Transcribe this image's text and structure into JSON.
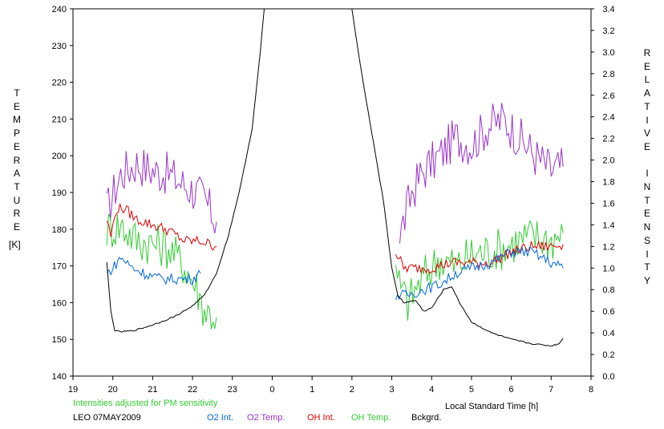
{
  "chart_data": {
    "type": "line",
    "title": "",
    "xlabel": "Local Standard Time [h]",
    "ylabel_left": "TEMPERATURE",
    "ylabel_left_unit": "[K]",
    "ylabel_right": "RELATIVE INTENSITY",
    "ylim_left": [
      140,
      240
    ],
    "ylim_right": [
      0.0,
      3.4
    ],
    "x_ticks": [
      "19",
      "20",
      "21",
      "22",
      "23",
      "0",
      "1",
      "2",
      "3",
      "4",
      "5",
      "6",
      "7",
      "8"
    ],
    "y_left_ticks": [
      "140",
      "150",
      "160",
      "170",
      "180",
      "190",
      "200",
      "210",
      "220",
      "230",
      "240"
    ],
    "y_right_ticks": [
      "0.0",
      "0.2",
      "0.4",
      "0.6",
      "0.8",
      "1.0",
      "1.2",
      "1.4",
      "1.6",
      "1.8",
      "2.0",
      "2.2",
      "2.4",
      "2.6",
      "2.8",
      "3.0",
      "3.2",
      "3.4"
    ],
    "note": "Intensities adjusted for PM sensitivity",
    "station_date": "LEO 07MAY2009",
    "legend": [
      {
        "name": "O2 Int.",
        "color": "#0066dd"
      },
      {
        "name": "O2 Temp.",
        "color": "#9933cc"
      },
      {
        "name": "OH Int.",
        "color": "#dd0000"
      },
      {
        "name": "OH Temp.",
        "color": "#33cc33"
      },
      {
        "name": "Bckgrd.",
        "color": "#000000"
      }
    ],
    "series": [
      {
        "name": "O2 Temp.",
        "axis": "left",
        "color": "#9933cc",
        "x": [
          19.85,
          20.2,
          20.6,
          21.0,
          21.4,
          21.8,
          22.1,
          22.3,
          22.6,
          3.2,
          3.5,
          3.8,
          4.2,
          4.6,
          5.0,
          5.4,
          5.8,
          6.2,
          6.6,
          7.0,
          7.3
        ],
        "y": [
          185,
          195,
          198,
          196,
          195,
          192,
          190,
          188,
          182,
          178,
          190,
          196,
          200,
          205,
          203,
          208,
          210,
          205,
          200,
          196,
          197
        ]
      },
      {
        "name": "OH Temp.",
        "axis": "left",
        "color": "#33cc33",
        "x": [
          19.85,
          20.2,
          20.6,
          21.0,
          21.4,
          21.8,
          22.1,
          22.3,
          22.6,
          3.1,
          3.4,
          3.8,
          4.2,
          4.6,
          5.0,
          5.4,
          5.8,
          6.2,
          6.6,
          7.0,
          7.3
        ],
        "y": [
          180,
          181,
          177,
          176,
          175,
          170,
          164,
          158,
          156,
          167,
          160,
          167,
          172,
          170,
          173,
          174,
          175,
          177,
          178,
          177,
          179
        ]
      },
      {
        "name": "OH Int.",
        "axis": "right",
        "color": "#dd0000",
        "x": [
          19.85,
          19.95,
          20.1,
          20.3,
          20.6,
          21.0,
          21.4,
          21.8,
          22.2,
          22.6,
          3.1,
          3.3,
          3.6,
          4.0,
          4.5,
          5.0,
          5.5,
          6.0,
          6.5,
          7.0,
          7.3
        ],
        "y": [
          1.45,
          1.3,
          1.55,
          1.55,
          1.45,
          1.4,
          1.35,
          1.25,
          1.25,
          1.2,
          1.15,
          1.0,
          1.0,
          1.0,
          1.05,
          1.05,
          1.05,
          1.15,
          1.2,
          1.2,
          1.22
        ]
      },
      {
        "name": "O2 Int.",
        "axis": "right",
        "color": "#0066dd",
        "x": [
          19.85,
          20.0,
          20.2,
          20.5,
          20.8,
          21.2,
          21.6,
          22.0,
          22.2,
          3.1,
          3.4,
          3.8,
          4.2,
          4.6,
          5.0,
          5.5,
          6.0,
          6.5,
          7.0,
          7.3
        ],
        "y": [
          0.95,
          1.0,
          1.1,
          1.0,
          0.95,
          0.9,
          0.9,
          0.9,
          0.95,
          0.75,
          0.75,
          0.8,
          0.85,
          0.95,
          1.0,
          1.05,
          1.15,
          1.15,
          1.05,
          1.0
        ]
      },
      {
        "name": "Bckgrd.",
        "axis": "right",
        "color": "#000000",
        "x": [
          19.85,
          19.95,
          20.05,
          20.2,
          20.5,
          20.8,
          21.2,
          21.6,
          22.0,
          22.3,
          22.6,
          22.9,
          23.2,
          23.5,
          23.7,
          23.8,
          2.0,
          2.2,
          2.5,
          2.8,
          3.0,
          3.15,
          3.3,
          3.6,
          3.8,
          4.0,
          4.3,
          4.5,
          4.7,
          5.0,
          5.5,
          6.0,
          6.5,
          7.0,
          7.2,
          7.3
        ],
        "y": [
          1.05,
          0.6,
          0.42,
          0.41,
          0.42,
          0.45,
          0.5,
          0.56,
          0.65,
          0.75,
          0.95,
          1.3,
          1.75,
          2.3,
          3.0,
          3.4,
          3.4,
          2.9,
          2.25,
          1.6,
          1.0,
          0.75,
          0.68,
          0.7,
          0.6,
          0.63,
          0.8,
          0.83,
          0.68,
          0.5,
          0.4,
          0.34,
          0.3,
          0.28,
          0.3,
          0.35
        ]
      }
    ]
  }
}
